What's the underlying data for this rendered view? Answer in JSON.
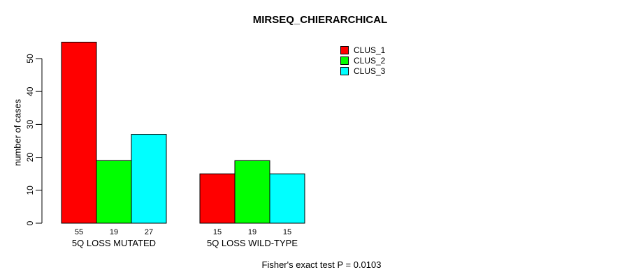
{
  "title": "MIRSEQ_CHIERARCHICAL",
  "colors": {
    "clus1": "#FF0000",
    "clus2": "#00FF00",
    "clus3": "#00FFFF",
    "axis": "#000000",
    "background": "#FFFFFF"
  },
  "chart_data": {
    "type": "bar",
    "title": "MIRSEQ_CHIERARCHICAL",
    "xlabel": "",
    "ylabel": "number of cases",
    "categories": [
      "5Q LOSS MUTATED",
      "5Q LOSS WILD-TYPE"
    ],
    "series": [
      {
        "name": "CLUS_1",
        "color": "#FF0000",
        "values": [
          55,
          15
        ]
      },
      {
        "name": "CLUS_2",
        "color": "#00FF00",
        "values": [
          19,
          19
        ]
      },
      {
        "name": "CLUS_3",
        "color": "#00FFFF",
        "values": [
          27,
          15
        ]
      }
    ],
    "yticks": [
      0,
      10,
      20,
      30,
      40,
      50
    ],
    "ylim": [
      0,
      55
    ],
    "grid": false,
    "legend_position": "top-right",
    "bar_value_labels_shown": true,
    "annotation": "Fisher's exact test P = 0.0103"
  }
}
